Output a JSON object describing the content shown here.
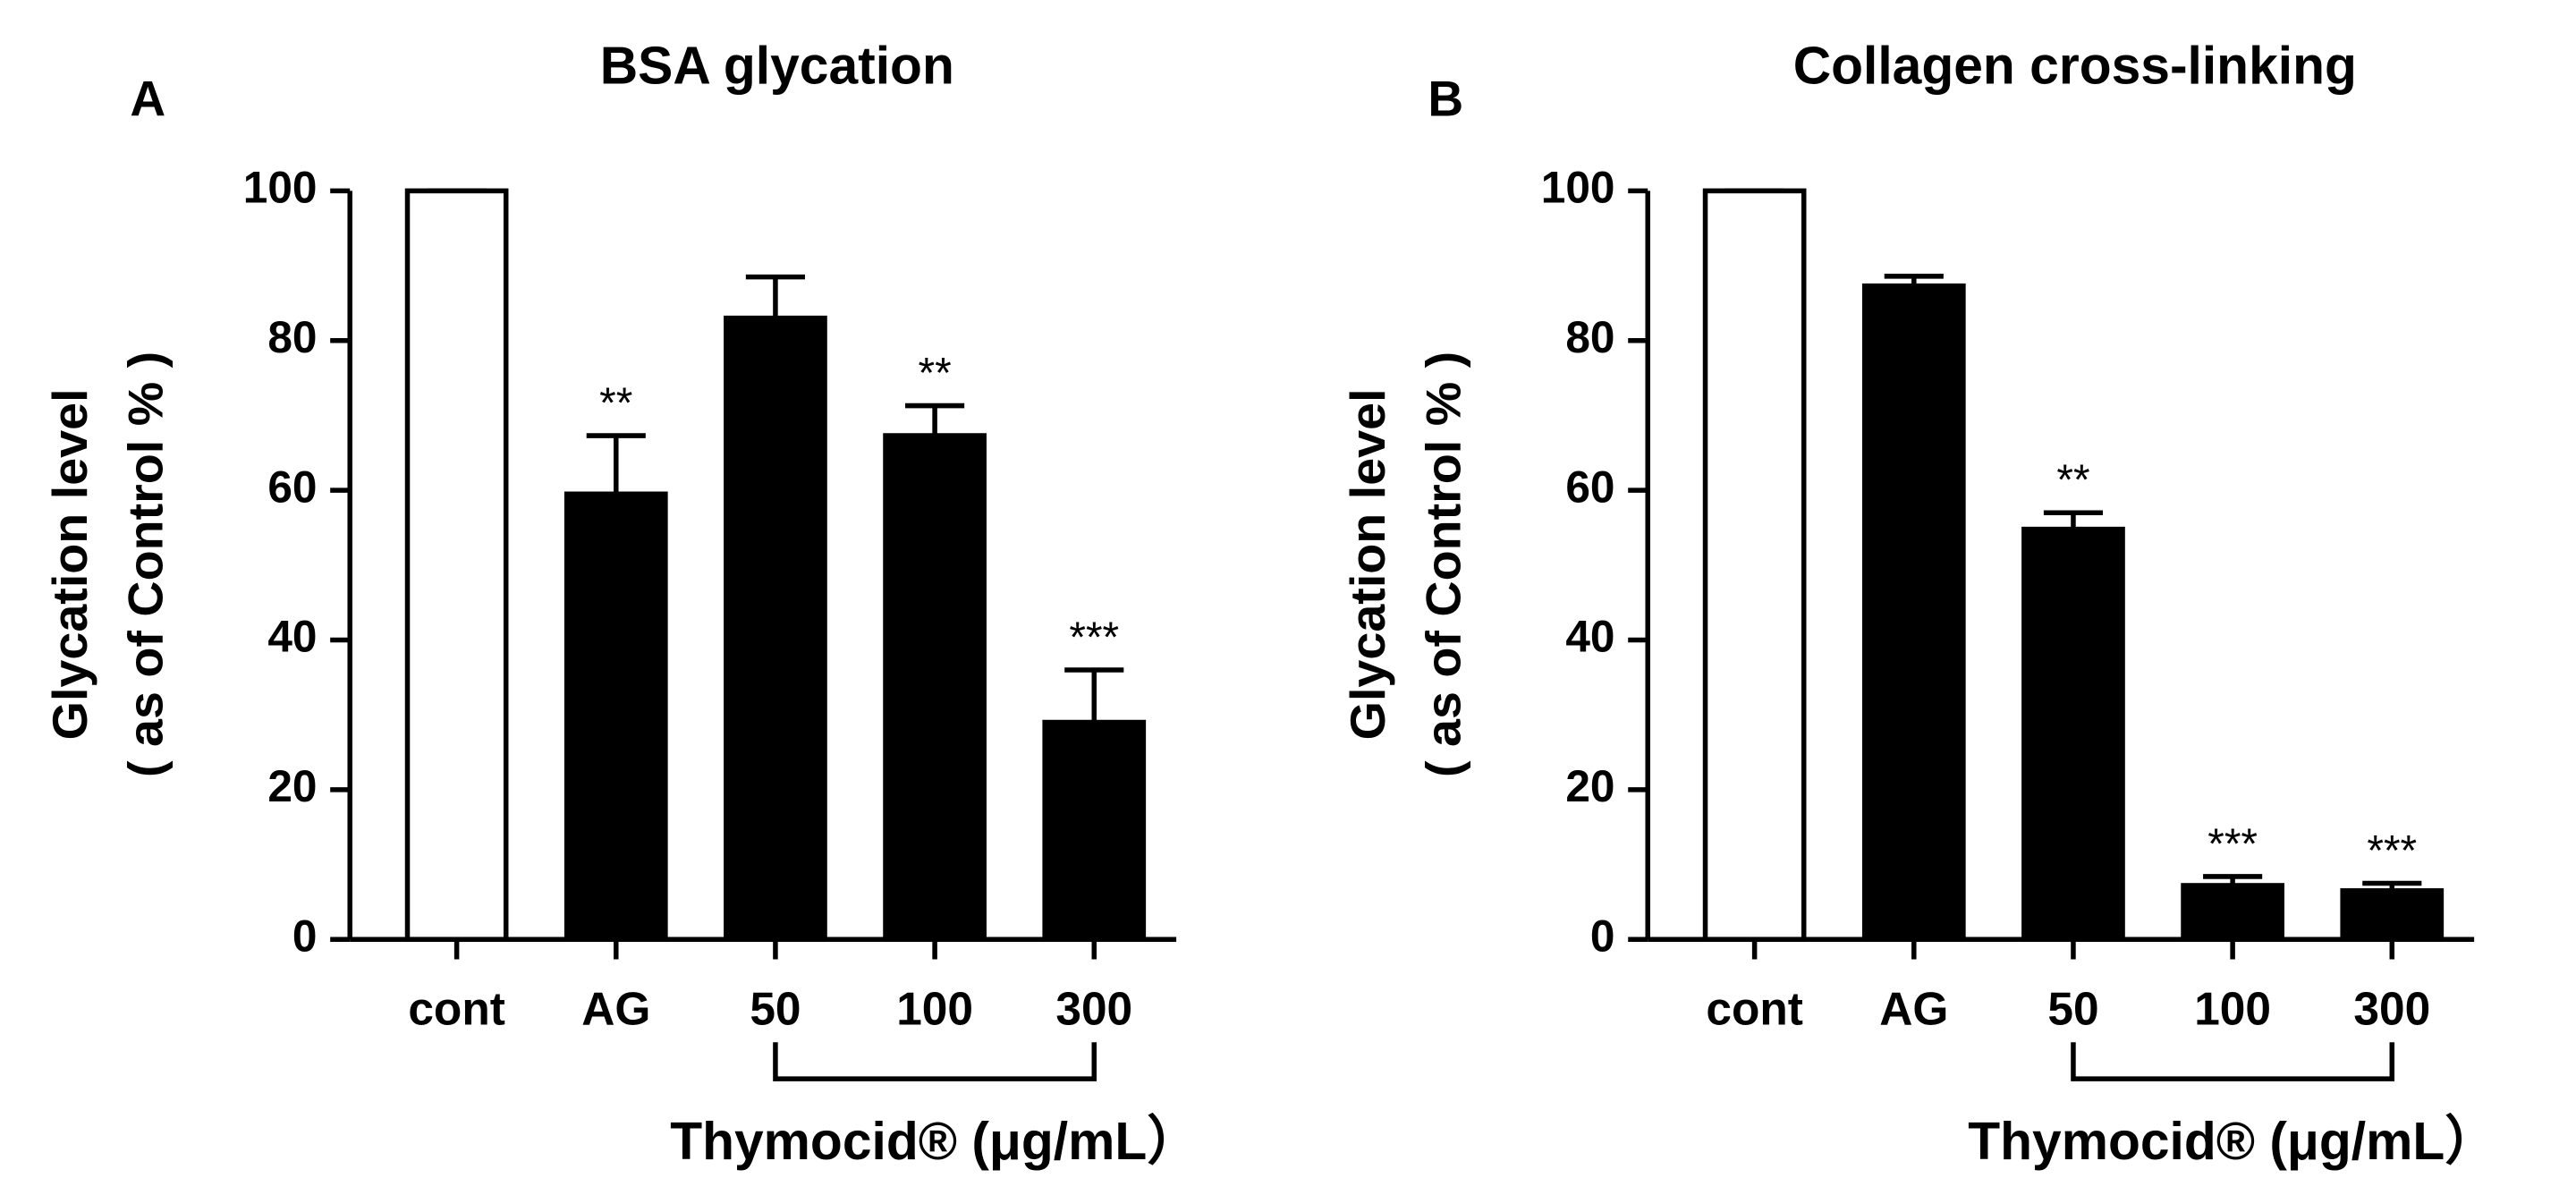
{
  "chart_data": [
    {
      "type": "bar",
      "panel": "A",
      "title": "BSA glycation",
      "y_label": [
        "Glycation level",
        "( as of Control % )"
      ],
      "x_label": "Thymocid® (μg/mL）",
      "categories": [
        "cont",
        "AG",
        "50",
        "100",
        "300"
      ],
      "values": [
        100,
        59.5,
        83,
        67.3,
        29
      ],
      "errors": [
        0,
        7.8,
        5.5,
        4,
        7
      ],
      "annotations": [
        null,
        "**",
        null,
        "**",
        "***"
      ],
      "colors": [
        "#ffffff",
        "#000000",
        "#000000",
        "#000000",
        "#000000"
      ],
      "ylim": [
        0,
        100
      ],
      "yticks": [
        0,
        20,
        40,
        60,
        80,
        100
      ]
    },
    {
      "type": "bar",
      "panel": "B",
      "title": "Collagen cross-linking",
      "y_label": [
        "Glycation level",
        "( as of Control % )"
      ],
      "x_label": "Thymocid® (μg/mL）",
      "categories": [
        "cont",
        "AG",
        "50",
        "100",
        "300"
      ],
      "values": [
        100,
        87.3,
        54.8,
        7.2,
        6.5
      ],
      "errors": [
        0,
        1.3,
        2.2,
        1.2,
        1
      ],
      "annotations": [
        null,
        null,
        "**",
        "***",
        "***"
      ],
      "colors": [
        "#ffffff",
        "#000000",
        "#000000",
        "#000000",
        "#000000"
      ],
      "ylim": [
        0,
        100
      ],
      "yticks": [
        0,
        20,
        40,
        60,
        80,
        100
      ]
    }
  ]
}
